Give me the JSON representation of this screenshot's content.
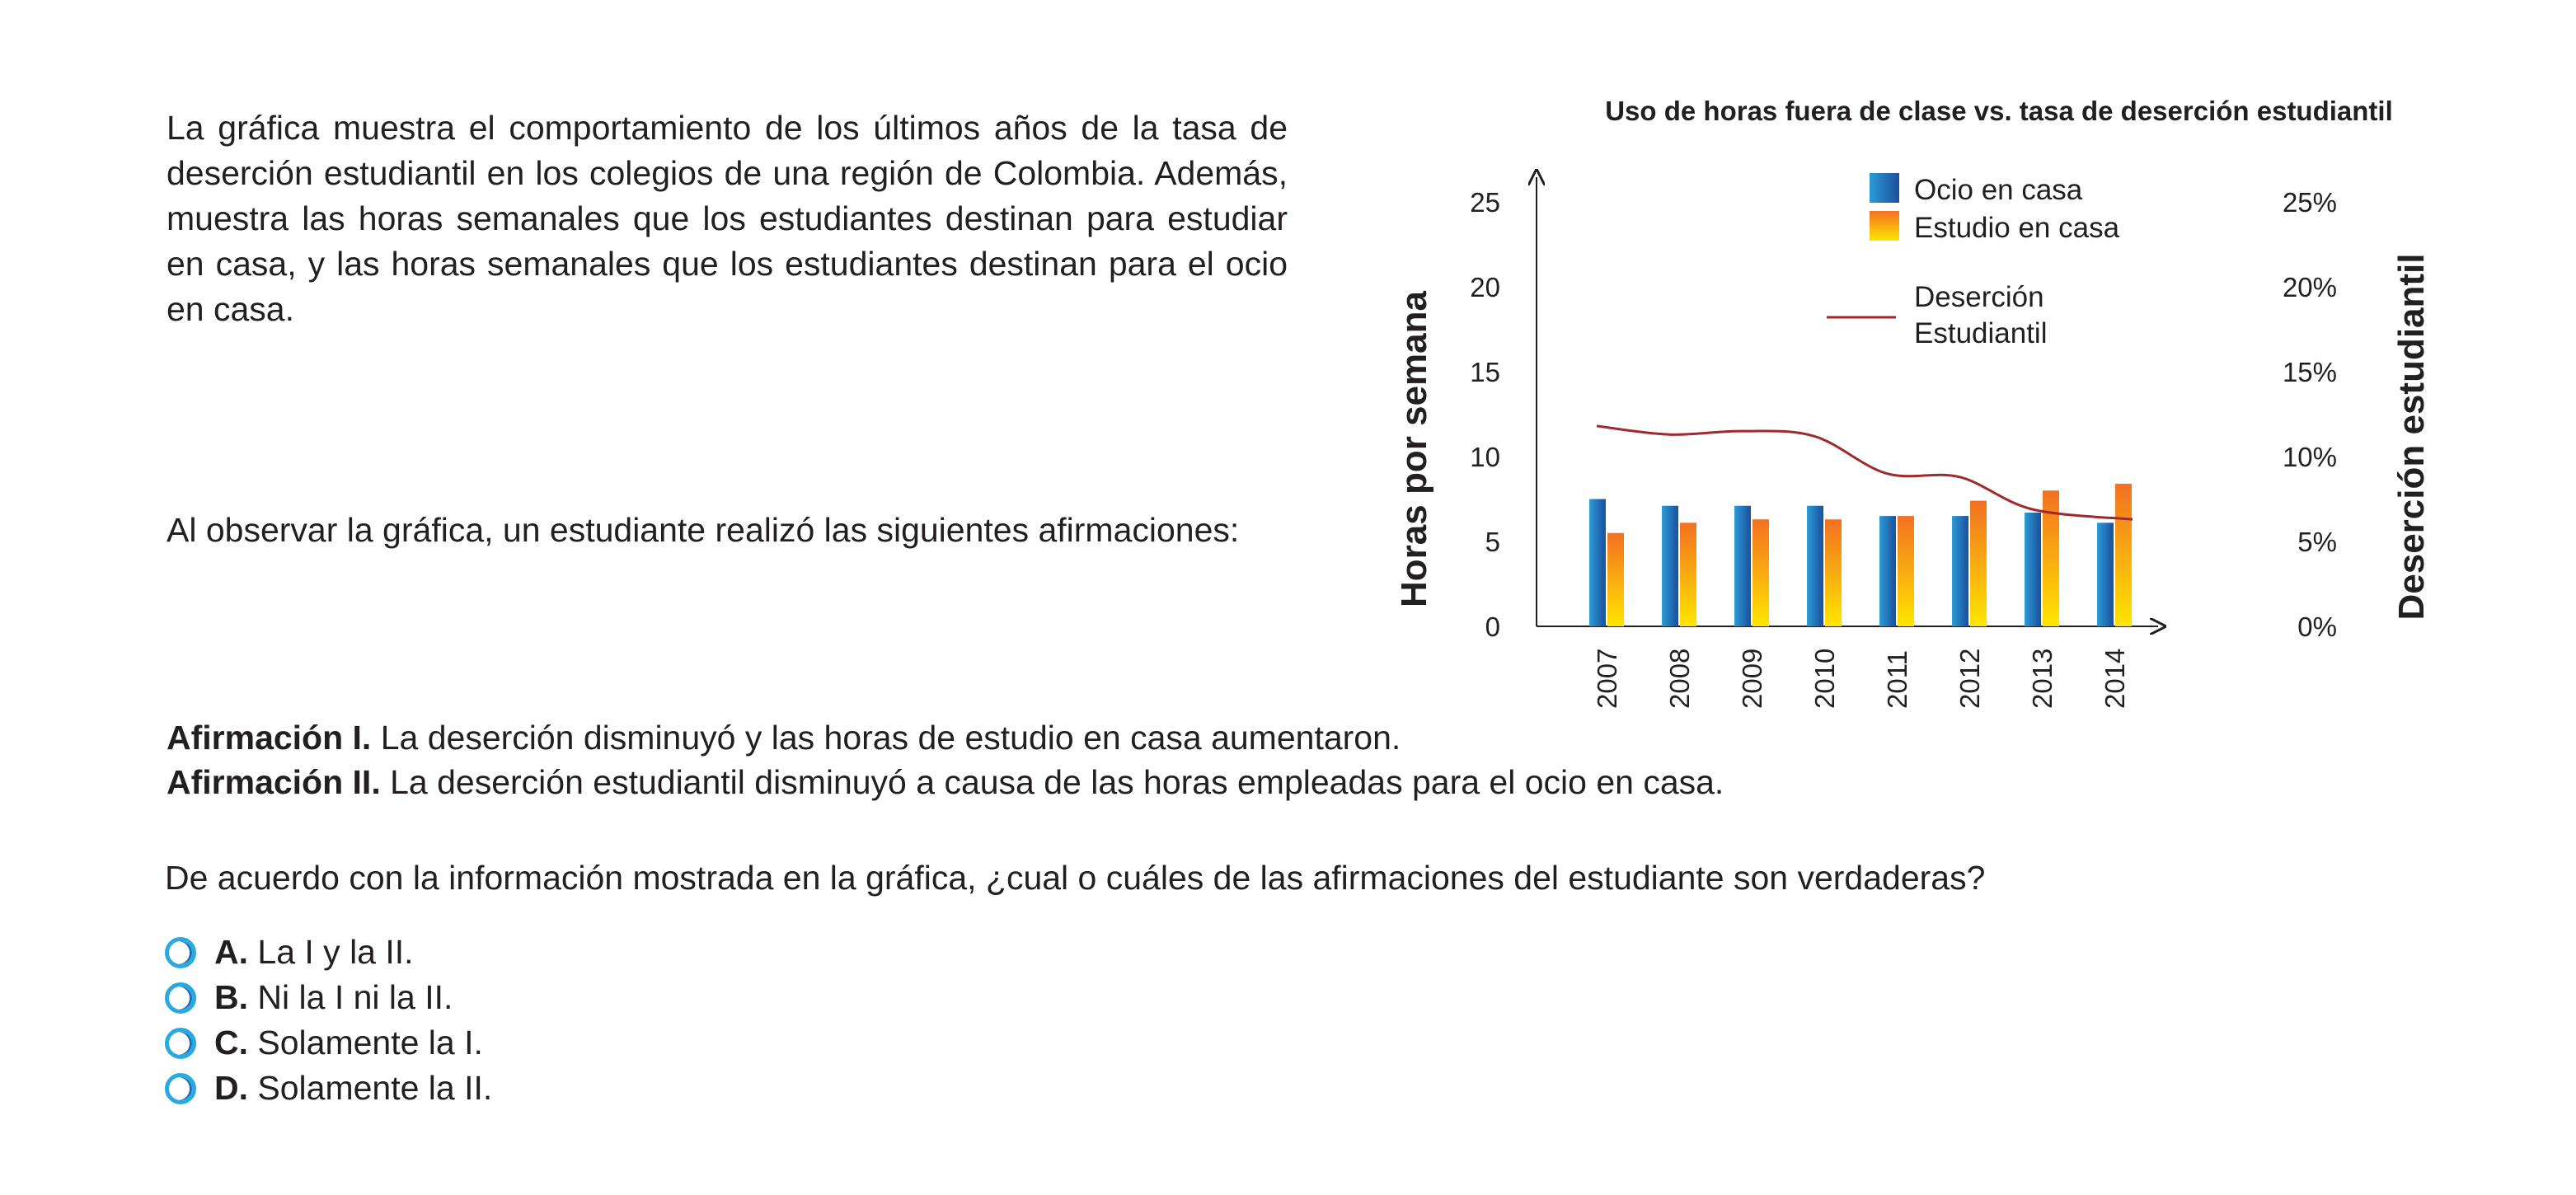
{
  "intro_text": "La gráfica muestra el comportamiento de los últimos años de la tasa de deserción estudiantil en los colegios de una región de Colombia. Además, muestra las horas semanales que los estudiantes destinan para estudiar en casa, y las horas semanales que los estudiantes destinan para el ocio en casa.",
  "prompt_text": "Al observar la gráfica, un estudiante realizó las siguientes afirmaciones:",
  "affirmations": [
    {
      "label": "Afirmación I.",
      "text": " La deserción disminuyó y las horas de estudio en casa aumentaron."
    },
    {
      "label": "Afirmación II.",
      "text": " La deserción estudiantil disminuyó a causa de las horas empleadas para el ocio en casa."
    }
  ],
  "question": "De acuerdo con la información mostrada en la gráfica, ¿cual o cuáles de las afirmaciones del estudiante son verdaderas?",
  "options": [
    {
      "letter": "A.",
      "text": "La I y la II."
    },
    {
      "letter": "B.",
      "text": "Ni la I ni la II."
    },
    {
      "letter": "C.",
      "text": "Solamente la I."
    },
    {
      "letter": "D.",
      "text": "Solamente la II."
    }
  ],
  "chart_data": {
    "type": "bar",
    "title": "Uso de horas fuera de clase vs. tasa de deserción estudiantil",
    "ylabel": "Horas por semana",
    "y2label": "Deserción estudiantil",
    "categories": [
      "2007",
      "2008",
      "2009",
      "2010",
      "2011",
      "2012",
      "2013",
      "2014"
    ],
    "ylim": [
      0,
      25
    ],
    "yticks": [
      "0",
      "5",
      "10",
      "15",
      "20",
      "25"
    ],
    "y2lim": [
      0,
      25
    ],
    "y2ticks": [
      "0%",
      "5%",
      "10%",
      "15%",
      "20%",
      "25%"
    ],
    "series": [
      {
        "name": "Ocio en casa",
        "type": "bar",
        "values": [
          7.5,
          7.1,
          7.1,
          7.1,
          6.5,
          6.5,
          6.7,
          6.1
        ]
      },
      {
        "name": "Estudio en casa",
        "type": "bar",
        "values": [
          5.5,
          6.1,
          6.3,
          6.3,
          6.5,
          7.4,
          8.0,
          8.4
        ]
      },
      {
        "name": "Deserción Estudiantil",
        "type": "line",
        "values": [
          11.8,
          11.3,
          11.5,
          11.2,
          9.0,
          8.8,
          6.9,
          6.3
        ]
      }
    ],
    "legend_position": "top",
    "colors": {
      "ocio": "#1b75bb",
      "estudio": "#f7941d",
      "desercion": "#9e2a2b"
    }
  }
}
